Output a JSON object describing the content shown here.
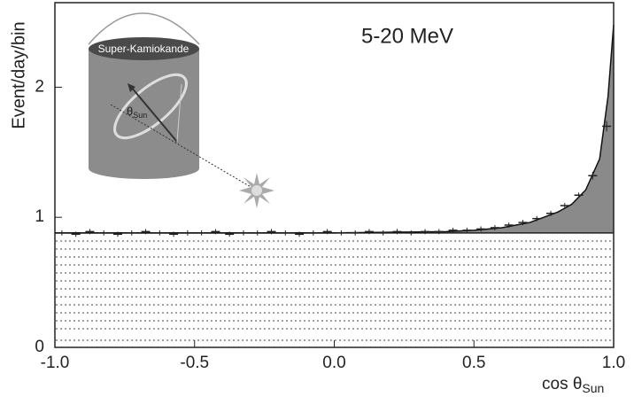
{
  "chart_data": {
    "type": "scatter",
    "annotation": "5-20 MeV",
    "y_label": "Event/day/bin",
    "x_label": "cos θ",
    "x_label_sub": "Sun",
    "inset_label": "Super-Kamiokande",
    "inset_angle_label": "θ",
    "inset_angle_sub": "Sun",
    "xlim": [
      -1,
      1
    ],
    "ylim": [
      0,
      2.65
    ],
    "xticks": [
      {
        "value": -1,
        "label": "-1.0"
      },
      {
        "value": -0.5,
        "label": "-0.5"
      },
      {
        "value": 0,
        "label": "0.0"
      },
      {
        "value": 0.5,
        "label": "0.5"
      },
      {
        "value": 1,
        "label": "1.0"
      }
    ],
    "yticks": [
      0,
      1,
      2
    ],
    "background_level": 0.88,
    "x": [
      -0.975,
      -0.925,
      -0.875,
      -0.825,
      -0.775,
      -0.725,
      -0.675,
      -0.625,
      -0.575,
      -0.525,
      -0.475,
      -0.425,
      -0.375,
      -0.325,
      -0.275,
      -0.225,
      -0.175,
      -0.125,
      -0.075,
      -0.025,
      0.025,
      0.075,
      0.125,
      0.175,
      0.225,
      0.275,
      0.325,
      0.375,
      0.425,
      0.475,
      0.525,
      0.575,
      0.625,
      0.675,
      0.725,
      0.775,
      0.825,
      0.875,
      0.925,
      0.975
    ],
    "values": [
      0.88,
      0.87,
      0.89,
      0.88,
      0.87,
      0.88,
      0.89,
      0.88,
      0.87,
      0.88,
      0.88,
      0.89,
      0.87,
      0.88,
      0.88,
      0.89,
      0.88,
      0.87,
      0.88,
      0.89,
      0.88,
      0.88,
      0.89,
      0.88,
      0.89,
      0.88,
      0.89,
      0.89,
      0.9,
      0.9,
      0.91,
      0.92,
      0.94,
      0.96,
      0.99,
      1.03,
      1.09,
      1.17,
      1.32,
      1.7
    ],
    "errors": [
      0.02,
      0.02,
      0.02,
      0.02,
      0.02,
      0.02,
      0.02,
      0.02,
      0.02,
      0.02,
      0.02,
      0.02,
      0.02,
      0.02,
      0.02,
      0.02,
      0.02,
      0.02,
      0.02,
      0.02,
      0.02,
      0.02,
      0.02,
      0.02,
      0.02,
      0.02,
      0.02,
      0.02,
      0.02,
      0.02,
      0.02,
      0.02,
      0.02,
      0.02,
      0.02,
      0.02,
      0.02,
      0.02,
      0.03,
      0.04
    ],
    "color": "#222222",
    "fit": {
      "x": [
        -1,
        0,
        0.4,
        0.5,
        0.6,
        0.7,
        0.8,
        0.85,
        0.9,
        0.95,
        0.98,
        1
      ],
      "values": [
        0.88,
        0.88,
        0.89,
        0.9,
        0.92,
        0.96,
        1.04,
        1.1,
        1.21,
        1.45,
        1.93,
        2.48
      ],
      "color": "#111111",
      "fill": "#8a8a8a"
    }
  }
}
